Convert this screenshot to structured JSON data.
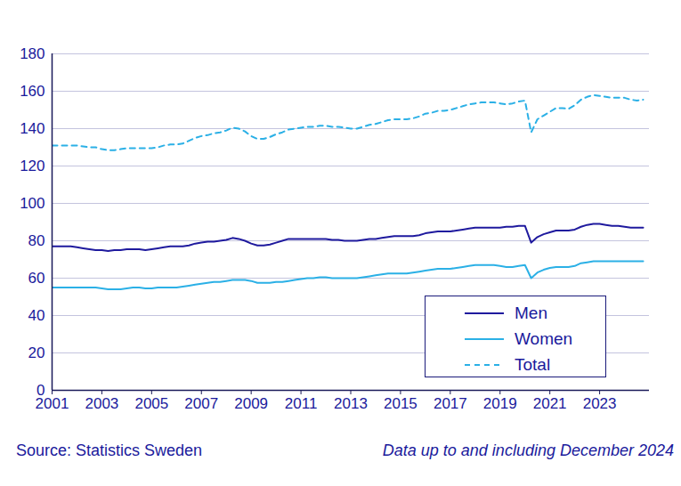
{
  "chart_data": {
    "type": "line",
    "source": "Source: Statistics Sweden",
    "note": "Data up to and including December 2024",
    "x": [
      2001,
      2001.25,
      2001.5,
      2001.75,
      2002,
      2002.25,
      2002.5,
      2002.75,
      2003,
      2003.25,
      2003.5,
      2003.75,
      2004,
      2004.25,
      2004.5,
      2004.75,
      2005,
      2005.25,
      2005.5,
      2005.75,
      2006,
      2006.25,
      2006.5,
      2006.75,
      2007,
      2007.25,
      2007.5,
      2007.75,
      2008,
      2008.25,
      2008.5,
      2008.75,
      2009,
      2009.25,
      2009.5,
      2009.75,
      2010,
      2010.25,
      2010.5,
      2010.75,
      2011,
      2011.25,
      2011.5,
      2011.75,
      2012,
      2012.25,
      2012.5,
      2012.75,
      2013,
      2013.25,
      2013.5,
      2013.75,
      2014,
      2014.25,
      2014.5,
      2014.75,
      2015,
      2015.25,
      2015.5,
      2015.75,
      2016,
      2016.25,
      2016.5,
      2016.75,
      2017,
      2017.25,
      2017.5,
      2017.75,
      2018,
      2018.25,
      2018.5,
      2018.75,
      2019,
      2019.25,
      2019.5,
      2019.75,
      2020,
      2020.25,
      2020.5,
      2020.75,
      2021,
      2021.25,
      2021.5,
      2021.75,
      2022,
      2022.25,
      2022.5,
      2022.75,
      2023,
      2023.25,
      2023.5,
      2023.75,
      2024,
      2024.25,
      2024.5,
      2024.75
    ],
    "series": [
      {
        "name": "Men",
        "color": "#1f1a9e",
        "line_style": "solid",
        "values": [
          77,
          77,
          77,
          77,
          76.5,
          76,
          75.5,
          75,
          75,
          74.5,
          75,
          75,
          75.5,
          75.5,
          75.5,
          75,
          75.5,
          76,
          76.5,
          77,
          77,
          77,
          77.5,
          78.5,
          79,
          79.5,
          79.5,
          80,
          80.5,
          81.5,
          81,
          80,
          78.5,
          77.5,
          77.5,
          78,
          79,
          80,
          81,
          81,
          81,
          81,
          81,
          81,
          81,
          80.5,
          80.5,
          80,
          80,
          80,
          80.5,
          81,
          81,
          81.5,
          82,
          82.5,
          82.5,
          82.5,
          82.5,
          83,
          84,
          84.5,
          85,
          85,
          85,
          85.5,
          86,
          86.5,
          87,
          87,
          87,
          87,
          87,
          87.5,
          87.5,
          88,
          88,
          79,
          82,
          83.5,
          84.5,
          85.5,
          85.5,
          85.5,
          86,
          87.5,
          88.5,
          89,
          89,
          88.5,
          88,
          88,
          87.5,
          87,
          87,
          87
        ]
      },
      {
        "name": "Women",
        "color": "#2bb0e6",
        "line_style": "solid",
        "values": [
          55,
          55,
          55,
          55,
          55,
          55,
          55,
          55,
          54.5,
          54,
          54,
          54,
          54.5,
          55,
          55,
          54.5,
          54.5,
          55,
          55,
          55,
          55,
          55.5,
          56,
          56.5,
          57,
          57.5,
          58,
          58,
          58.5,
          59,
          59,
          59,
          58.5,
          57.5,
          57.5,
          57.5,
          58,
          58,
          58.5,
          59,
          59.5,
          60,
          60,
          60.5,
          60.5,
          60,
          60,
          60,
          60,
          60,
          60.5,
          61,
          61.5,
          62,
          62.5,
          62.5,
          62.5,
          62.5,
          63,
          63.5,
          64,
          64.5,
          65,
          65,
          65,
          65.5,
          66,
          66.5,
          67,
          67,
          67,
          67,
          66.5,
          66,
          66,
          66.5,
          67,
          60,
          63,
          64.5,
          65.5,
          66,
          66,
          66,
          66.5,
          68,
          68.5,
          69,
          69,
          69,
          69,
          69,
          69,
          69,
          69,
          69
        ]
      },
      {
        "name": "Total",
        "color": "#2bb0e6",
        "line_style": "dashed",
        "values": [
          131,
          131,
          131,
          131,
          131,
          130.5,
          130,
          130,
          129,
          128.5,
          128.5,
          129,
          129.5,
          129.5,
          129.5,
          129.5,
          129.5,
          130,
          131,
          131.5,
          131.5,
          132,
          133.5,
          135,
          136,
          136.5,
          137.5,
          138,
          139,
          140.5,
          140,
          138.5,
          136,
          134.5,
          134.5,
          135.5,
          137,
          138,
          139.5,
          140,
          140.5,
          141,
          141,
          141.5,
          141.5,
          141,
          141,
          140.5,
          140,
          140,
          141,
          142,
          142.5,
          143.5,
          144.5,
          145,
          145,
          145,
          145.5,
          146.5,
          148,
          148.5,
          149.5,
          149.5,
          150,
          151,
          152,
          153,
          153.5,
          154,
          154,
          154,
          153.5,
          153,
          153.5,
          154.5,
          155,
          138,
          145,
          147,
          149,
          151,
          151,
          150.5,
          152.5,
          155.5,
          157,
          158,
          157.5,
          157,
          156.5,
          156.5,
          156.5,
          155.5,
          155,
          155.5
        ]
      }
    ],
    "xlim": [
      2001,
      2025
    ],
    "xticks": [
      2001,
      2003,
      2005,
      2007,
      2009,
      2011,
      2013,
      2015,
      2017,
      2019,
      2021,
      2023
    ],
    "ylim": [
      0,
      180
    ],
    "yticks": [
      0,
      20,
      40,
      60,
      80,
      100,
      120,
      140,
      160,
      180
    ],
    "grid": true,
    "legend": "bottom-right"
  }
}
